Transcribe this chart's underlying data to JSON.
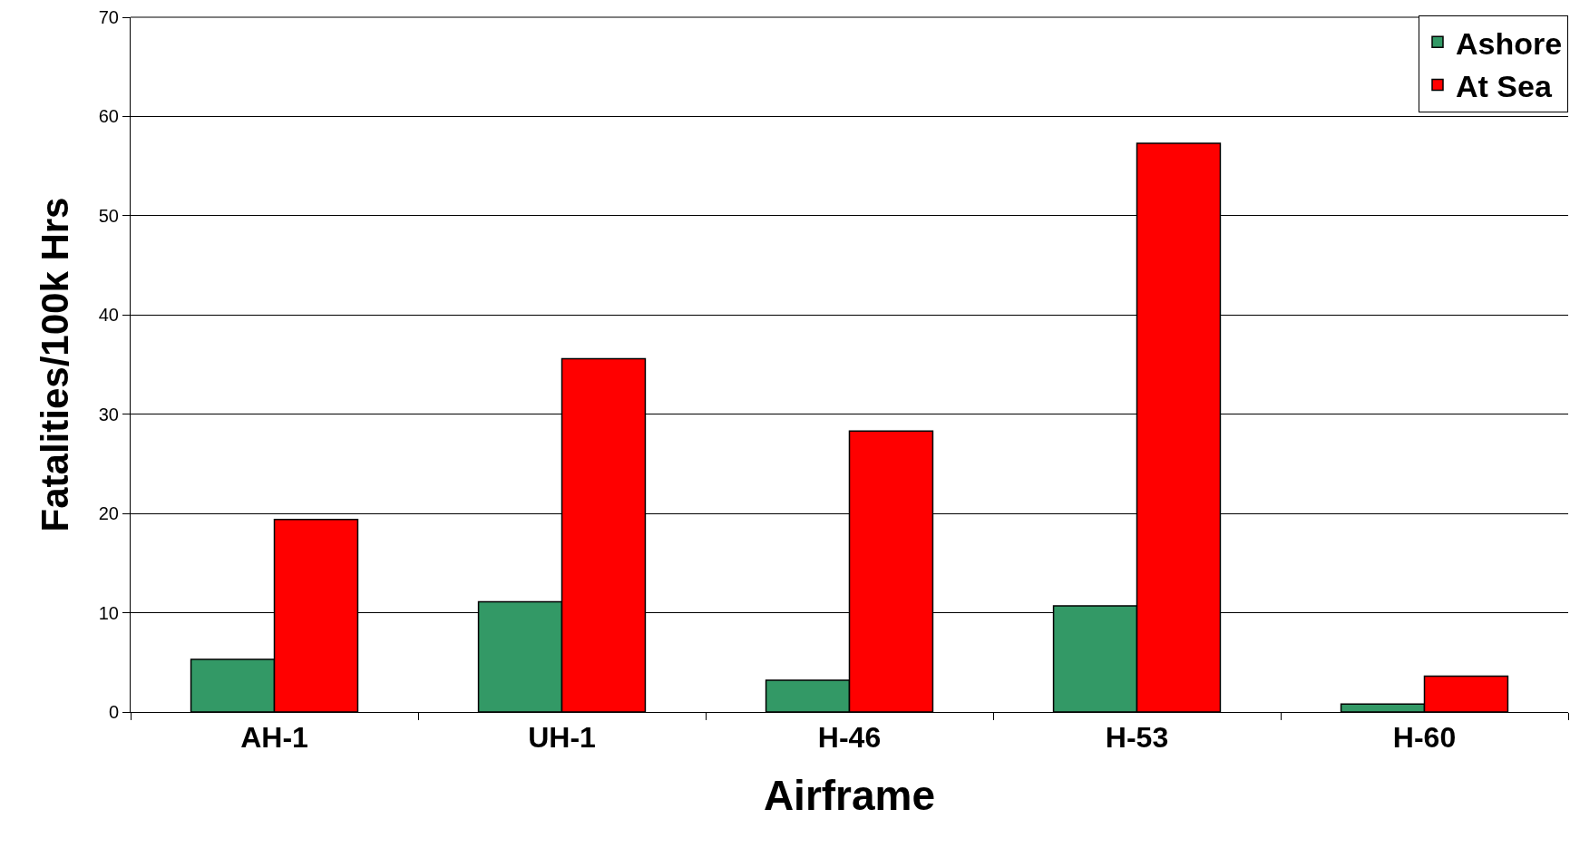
{
  "chart_data": {
    "type": "bar",
    "xlabel": "Airframe",
    "ylabel": "Fatalities/100k Hrs",
    "categories": [
      "AH-1",
      "UH-1",
      "H-46",
      "H-53",
      "H-60"
    ],
    "series": [
      {
        "name": "Ashore",
        "color": "#339966",
        "values": [
          5.3,
          11.1,
          3.2,
          10.7,
          0.8
        ]
      },
      {
        "name": "At Sea",
        "color": "#ff0000",
        "values": [
          19.4,
          35.6,
          28.3,
          57.3,
          3.6
        ]
      }
    ],
    "ylim": [
      0,
      70
    ],
    "yticks": [
      0,
      10,
      20,
      30,
      40,
      50,
      60,
      70
    ],
    "grid": "y",
    "legend": "top right"
  }
}
